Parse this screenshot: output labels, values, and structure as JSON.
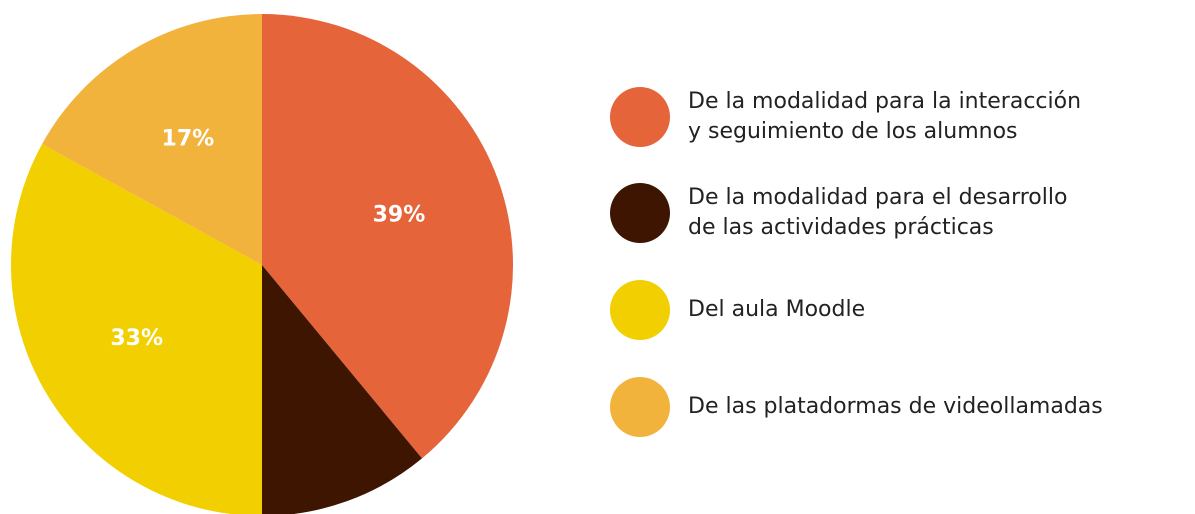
{
  "chart_data": {
    "type": "pie",
    "categories": [
      "De la modalidad para la interacción\ny seguimiento de los alumnos",
      "De la modalidad para el desarrollo\nde las actividades prácticas",
      "Del aula Moodle",
      "De las platadormas de videollamadas"
    ],
    "values": [
      39,
      11,
      33,
      17
    ],
    "value_labels": [
      "39%",
      null,
      "33%",
      "17%"
    ],
    "colors": [
      "#e5643a",
      "#3e1500",
      "#f2cf00",
      "#f1b33c"
    ]
  }
}
